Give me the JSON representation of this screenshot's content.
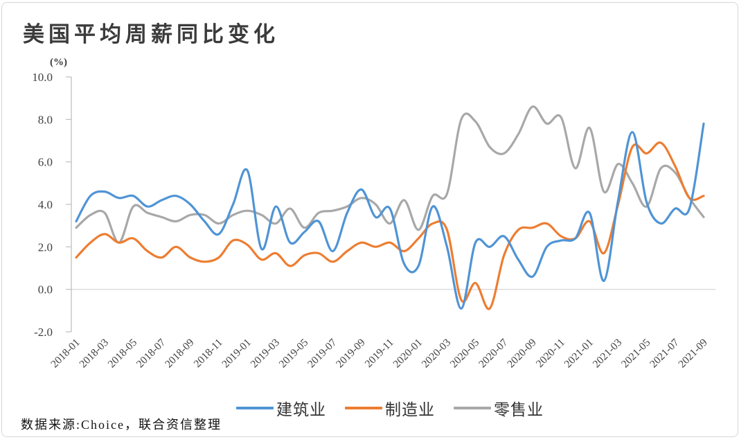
{
  "title": "美国平均周薪同比变化",
  "unit_label": "(%)",
  "source_note": "数据来源:Choice，联合资信整理",
  "colors": {
    "construction": "#4F94D5",
    "manufacturing": "#ED7D31",
    "retail": "#A8A8A8",
    "axis": "#BFBFBF",
    "zero_gridline": "#D9D9D9",
    "tick_text": "#404040",
    "title_text": "#3B3B3B",
    "card_border": "#D6D6D6"
  },
  "chart_data": {
    "type": "line",
    "title": "美国平均周薪同比变化",
    "xlabel": "",
    "ylabel": "(%)",
    "ylim": [
      -2.0,
      10.0
    ],
    "ytick_step": 2.0,
    "y_ticks": [
      "10.0",
      "8.0",
      "6.0",
      "4.0",
      "2.0",
      "0.0",
      "-2.0"
    ],
    "grid": "zero-baseline-only",
    "smoothing": true,
    "legend_position": "bottom",
    "x": [
      "2018-01",
      "2018-02",
      "2018-03",
      "2018-04",
      "2018-05",
      "2018-06",
      "2018-07",
      "2018-08",
      "2018-09",
      "2018-10",
      "2018-11",
      "2018-12",
      "2019-01",
      "2019-02",
      "2019-03",
      "2019-04",
      "2019-05",
      "2019-06",
      "2019-07",
      "2019-08",
      "2019-09",
      "2019-10",
      "2019-11",
      "2019-12",
      "2020-01",
      "2020-02",
      "2020-03",
      "2020-04",
      "2020-05",
      "2020-06",
      "2020-07",
      "2020-08",
      "2020-09",
      "2020-10",
      "2020-11",
      "2020-12",
      "2021-01",
      "2021-02",
      "2021-03",
      "2021-04",
      "2021-05",
      "2021-06",
      "2021-07",
      "2021-08",
      "2021-09"
    ],
    "x_tick_labels": [
      "2018-01",
      "2018-03",
      "2018-05",
      "2018-07",
      "2018-09",
      "2018-11",
      "2019-01",
      "2019-03",
      "2019-05",
      "2019-07",
      "2019-09",
      "2019-11",
      "2020-01",
      "2020-03",
      "2020-05",
      "2020-07",
      "2020-09",
      "2020-11",
      "2021-01",
      "2021-03",
      "2021-05",
      "2021-07",
      "2021-09"
    ],
    "series": [
      {
        "name": "建筑业",
        "color": "#4F94D5",
        "values": [
          3.2,
          4.4,
          4.6,
          4.3,
          4.4,
          3.9,
          4.2,
          4.4,
          4.0,
          3.2,
          2.6,
          4.0,
          5.6,
          1.9,
          3.9,
          2.2,
          2.7,
          3.2,
          1.8,
          3.6,
          4.7,
          3.4,
          3.8,
          1.2,
          1.1,
          3.9,
          2.0,
          -0.9,
          2.2,
          2.0,
          2.5,
          1.4,
          0.6,
          2.0,
          2.3,
          2.4,
          3.6,
          0.4,
          4.2,
          7.4,
          4.1,
          3.1,
          3.8,
          3.8,
          7.8
        ]
      },
      {
        "name": "制造业",
        "color": "#ED7D31",
        "values": [
          1.5,
          2.2,
          2.6,
          2.2,
          2.4,
          1.8,
          1.5,
          2.0,
          1.5,
          1.3,
          1.5,
          2.3,
          2.1,
          1.4,
          1.7,
          1.1,
          1.6,
          1.7,
          1.3,
          1.8,
          2.2,
          2.0,
          2.2,
          1.8,
          2.4,
          3.1,
          2.8,
          -0.5,
          0.3,
          -0.9,
          1.6,
          2.8,
          2.9,
          3.1,
          2.5,
          2.4,
          3.2,
          1.7,
          4.0,
          6.7,
          6.4,
          6.9,
          5.8,
          4.3,
          4.4
        ]
      },
      {
        "name": "零售业",
        "color": "#A8A8A8",
        "values": [
          2.9,
          3.5,
          3.6,
          2.2,
          3.9,
          3.6,
          3.4,
          3.2,
          3.5,
          3.5,
          3.1,
          3.5,
          3.7,
          3.5,
          3.1,
          3.8,
          2.9,
          3.6,
          3.7,
          3.9,
          4.3,
          4.0,
          3.1,
          4.2,
          2.8,
          4.4,
          4.5,
          8.0,
          7.9,
          6.7,
          6.4,
          7.3,
          8.6,
          7.8,
          8.1,
          5.7,
          7.6,
          4.6,
          5.9,
          5.0,
          3.9,
          5.7,
          5.5,
          4.3,
          3.4
        ]
      }
    ]
  }
}
